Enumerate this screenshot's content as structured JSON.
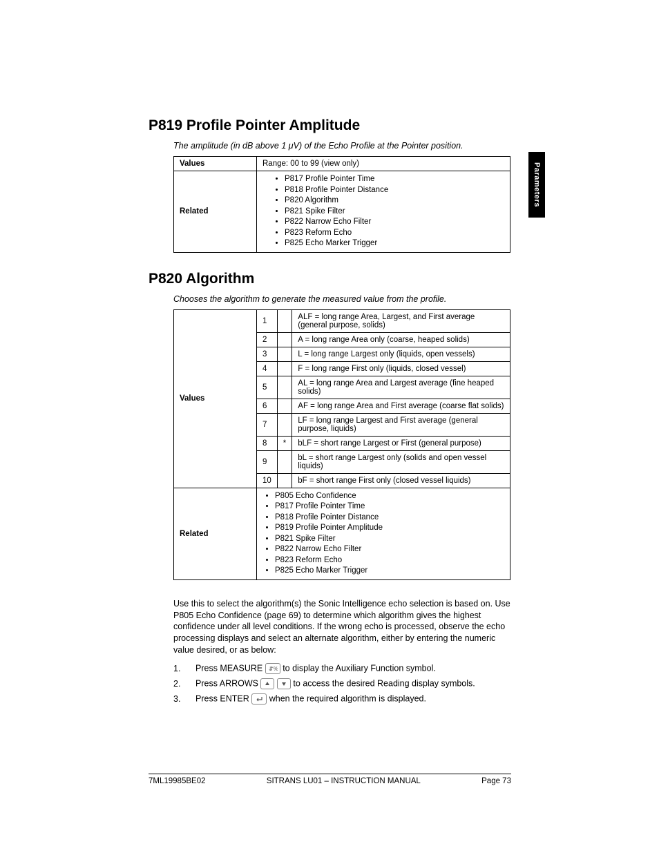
{
  "side_tab": "Parameters",
  "section1": {
    "title": "P819 Profile Pointer Amplitude",
    "subtitle": "The amplitude (in dB above 1 μV) of the Echo Profile at the Pointer position.",
    "values_label": "Values",
    "values_text": "Range: 00 to 99 (view only)",
    "related_label": "Related",
    "related_items": [
      "P817 Profile Pointer Time",
      "P818 Profile Pointer Distance",
      "P820 Algorithm",
      "P821 Spike Filter",
      "P822 Narrow Echo Filter",
      "P823 Reform Echo",
      "P825 Echo Marker Trigger"
    ]
  },
  "section2": {
    "title": "P820 Algorithm",
    "subtitle": "Chooses the algorithm to generate the measured value from the profile.",
    "values_label": "Values",
    "related_label": "Related",
    "rows": [
      {
        "n": "1",
        "star": "",
        "desc": "ALF = long range Area, Largest, and First average (general purpose, solids)"
      },
      {
        "n": "2",
        "star": "",
        "desc": "A  = long range Area only (coarse, heaped solids)"
      },
      {
        "n": "3",
        "star": "",
        "desc": "L = long range Largest only (liquids, open vessels)"
      },
      {
        "n": "4",
        "star": "",
        "desc": "F = long range First only (liquids, closed vessel)"
      },
      {
        "n": "5",
        "star": "",
        "desc": "AL = long range Area and Largest average (fine heaped solids)"
      },
      {
        "n": "6",
        "star": "",
        "desc": "AF = long range Area and First average (coarse flat solids)"
      },
      {
        "n": "7",
        "star": "",
        "desc": "LF = long range Largest and First average (general purpose, liquids)"
      },
      {
        "n": "8",
        "star": "*",
        "desc": "bLF = short range Largest or First (general purpose)"
      },
      {
        "n": "9",
        "star": "",
        "desc": "bL = short range Largest only (solids and open vessel liquids)"
      },
      {
        "n": "10",
        "star": "",
        "desc": "bF = short range First only (closed vessel liquids)"
      }
    ],
    "related_items": [
      "P805 Echo Confidence",
      "P817 Profile Pointer Time",
      "P818 Profile Pointer Distance",
      "P819 Profile Pointer Amplitude",
      "P821 Spike Filter",
      "P822 Narrow Echo Filter",
      "P823 Reform Echo",
      "P825 Echo Marker Trigger"
    ],
    "body": "Use this to select the algorithm(s) the Sonic Intelligence echo selection is based on. Use P805 Echo Confidence (page 69) to determine which algorithm gives the highest confidence under all level conditions. If the wrong echo is processed, observe the echo processing displays and select an alternate algorithm, either by entering the numeric value desired, or as below:",
    "steps": [
      {
        "n": "1.",
        "pre": "Press MEASURE",
        "icon": "measure",
        "post": "to display the Auxiliary Function symbol."
      },
      {
        "n": "2.",
        "pre": "Press ARROWS",
        "icon": "arrows",
        "post": "to access the desired Reading display symbols."
      },
      {
        "n": "3.",
        "pre": "Press ENTER",
        "icon": "enter",
        "post": "when the required algorithm is displayed."
      }
    ]
  },
  "footer": {
    "left": "7ML19985BE02",
    "center": "SITRANS LU01 – INSTRUCTION MANUAL",
    "right": "Page 73"
  }
}
